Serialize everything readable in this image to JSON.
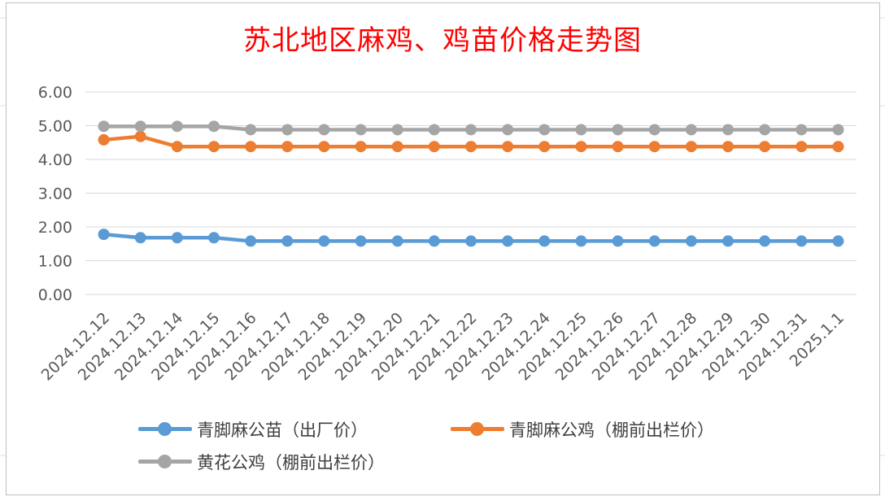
{
  "chart_data": {
    "type": "line",
    "title": "苏北地区麻鸡、鸡苗价格走势图",
    "categories": [
      "2024.12.12",
      "2024.12.13",
      "2024.12.14",
      "2024.12.15",
      "2024.12.16",
      "2024.12.17",
      "2024.12.18",
      "2024.12.19",
      "2024.12.20",
      "2024.12.21",
      "2024.12.22",
      "2024.12.23",
      "2024.12.24",
      "2024.12.25",
      "2024.12.26",
      "2024.12.27",
      "2024.12.28",
      "2024.12.29",
      "2024.12.30",
      "2024.12.31",
      "2025.1.1"
    ],
    "series": [
      {
        "name": "青脚麻公苗（出厂价）",
        "color": "#5b9bd5",
        "values": [
          1.78,
          1.68,
          1.68,
          1.68,
          1.58,
          1.58,
          1.58,
          1.58,
          1.58,
          1.58,
          1.58,
          1.58,
          1.58,
          1.58,
          1.58,
          1.58,
          1.58,
          1.58,
          1.58,
          1.58,
          1.58
        ]
      },
      {
        "name": "青脚麻公鸡（棚前出栏价）",
        "color": "#ed7d31",
        "values": [
          4.58,
          4.68,
          4.38,
          4.38,
          4.38,
          4.38,
          4.38,
          4.38,
          4.38,
          4.38,
          4.38,
          4.38,
          4.38,
          4.38,
          4.38,
          4.38,
          4.38,
          4.38,
          4.38,
          4.38,
          4.38
        ]
      },
      {
        "name": "黄花公鸡（棚前出栏价）",
        "color": "#a5a5a5",
        "values": [
          4.98,
          4.98,
          4.98,
          4.98,
          4.88,
          4.88,
          4.88,
          4.88,
          4.88,
          4.88,
          4.88,
          4.88,
          4.88,
          4.88,
          4.88,
          4.88,
          4.88,
          4.88,
          4.88,
          4.88,
          4.88
        ]
      }
    ],
    "yticks": [
      "0.00",
      "1.00",
      "2.00",
      "3.00",
      "4.00",
      "5.00",
      "6.00"
    ],
    "ylim": [
      0,
      6
    ],
    "grid": true,
    "legend_position": "bottom"
  }
}
